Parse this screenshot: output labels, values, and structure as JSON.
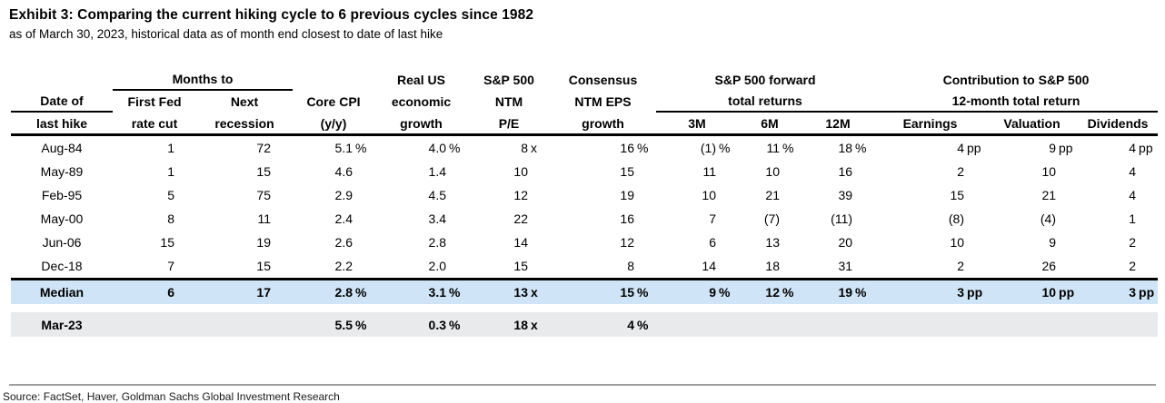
{
  "page": {
    "title": "Exhibit 3: Comparing the current hiking cycle to 6 previous cycles since 1982",
    "subtitle": "as of March 30, 2023, historical data as of month end closest to date of last hike",
    "source": "Source: FactSet, Haver, Goldman Sachs Global Investment Research"
  },
  "table": {
    "headers": {
      "date_col": {
        "line1": "Date of",
        "line2": "last hike"
      },
      "months_to_group": "Months to",
      "first_fed": {
        "line1": "First Fed",
        "line2": "rate cut"
      },
      "next_recession": {
        "line1": "Next",
        "line2": "recession"
      },
      "core_cpi": {
        "line1": "Core CPI",
        "line2": "(y/y)"
      },
      "real_growth": {
        "line1": "Real US",
        "line2": "economic",
        "line3": "growth"
      },
      "sp_ntm_pe": {
        "line1": "S&P 500",
        "line2": "NTM",
        "line3": "P/E"
      },
      "consensus_eps": {
        "line1": "Consensus",
        "line2": "NTM EPS",
        "line3": "growth"
      },
      "forward_returns_group": {
        "line1": "S&P 500 forward",
        "line2": "total returns"
      },
      "m3": "3M",
      "m6": "6M",
      "m12": "12M",
      "contribution_group": {
        "line1": "Contribution to S&P 500",
        "line2": "12-month total return"
      },
      "earnings": "Earnings",
      "valuation": "Valuation",
      "dividends": "Dividends"
    },
    "rows": [
      {
        "date": "Aug-84",
        "style": "normal",
        "cells": [
          [
            "1",
            ""
          ],
          [
            "72",
            ""
          ],
          [
            "5.1",
            "%"
          ],
          [
            "4.0",
            "%"
          ],
          [
            "8",
            "x"
          ],
          [
            "16",
            "%"
          ],
          [
            "(1)",
            "%"
          ],
          [
            "11",
            "%"
          ],
          [
            "18",
            "%"
          ],
          [
            "4",
            "pp"
          ],
          [
            "9",
            "pp"
          ],
          [
            "4",
            "pp"
          ]
        ]
      },
      {
        "date": "May-89",
        "style": "normal",
        "cells": [
          [
            "1",
            ""
          ],
          [
            "15",
            ""
          ],
          [
            "4.6",
            ""
          ],
          [
            "1.4",
            ""
          ],
          [
            "10",
            ""
          ],
          [
            "15",
            ""
          ],
          [
            "11",
            ""
          ],
          [
            "10",
            ""
          ],
          [
            "16",
            ""
          ],
          [
            "2",
            ""
          ],
          [
            "10",
            ""
          ],
          [
            "4",
            ""
          ]
        ]
      },
      {
        "date": "Feb-95",
        "style": "normal",
        "cells": [
          [
            "5",
            ""
          ],
          [
            "75",
            ""
          ],
          [
            "2.9",
            ""
          ],
          [
            "4.5",
            ""
          ],
          [
            "12",
            ""
          ],
          [
            "19",
            ""
          ],
          [
            "10",
            ""
          ],
          [
            "21",
            ""
          ],
          [
            "39",
            ""
          ],
          [
            "15",
            ""
          ],
          [
            "21",
            ""
          ],
          [
            "4",
            ""
          ]
        ]
      },
      {
        "date": "May-00",
        "style": "normal",
        "cells": [
          [
            "8",
            ""
          ],
          [
            "11",
            ""
          ],
          [
            "2.4",
            ""
          ],
          [
            "3.4",
            ""
          ],
          [
            "22",
            ""
          ],
          [
            "16",
            ""
          ],
          [
            "7",
            ""
          ],
          [
            "(7)",
            ""
          ],
          [
            "(11)",
            ""
          ],
          [
            "(8)",
            ""
          ],
          [
            "(4)",
            ""
          ],
          [
            "1",
            ""
          ]
        ]
      },
      {
        "date": "Jun-06",
        "style": "normal",
        "cells": [
          [
            "15",
            ""
          ],
          [
            "19",
            ""
          ],
          [
            "2.6",
            ""
          ],
          [
            "2.8",
            ""
          ],
          [
            "14",
            ""
          ],
          [
            "12",
            ""
          ],
          [
            "6",
            ""
          ],
          [
            "13",
            ""
          ],
          [
            "20",
            ""
          ],
          [
            "10",
            ""
          ],
          [
            "9",
            ""
          ],
          [
            "2",
            ""
          ]
        ]
      },
      {
        "date": "Dec-18",
        "style": "normal",
        "cells": [
          [
            "7",
            ""
          ],
          [
            "15",
            ""
          ],
          [
            "2.2",
            ""
          ],
          [
            "2.0",
            ""
          ],
          [
            "15",
            ""
          ],
          [
            "8",
            ""
          ],
          [
            "14",
            ""
          ],
          [
            "18",
            ""
          ],
          [
            "31",
            ""
          ],
          [
            "2",
            ""
          ],
          [
            "26",
            ""
          ],
          [
            "2",
            ""
          ]
        ]
      },
      {
        "date": "Median",
        "style": "median",
        "cells": [
          [
            "6",
            ""
          ],
          [
            "17",
            ""
          ],
          [
            "2.8",
            "%"
          ],
          [
            "3.1",
            "%"
          ],
          [
            "13",
            "x"
          ],
          [
            "15",
            "%"
          ],
          [
            "9",
            "%"
          ],
          [
            "12",
            "%"
          ],
          [
            "19",
            "%"
          ],
          [
            "3",
            "pp"
          ],
          [
            "10",
            "pp"
          ],
          [
            "3",
            "pp"
          ]
        ]
      },
      {
        "date": "Mar-23",
        "style": "current",
        "spacer_before": true,
        "cells": [
          [
            "",
            ""
          ],
          [
            "",
            ""
          ],
          [
            "5.5",
            "%"
          ],
          [
            "0.3",
            "%"
          ],
          [
            "18",
            "x"
          ],
          [
            "4",
            "%"
          ],
          [
            "",
            ""
          ],
          [
            "",
            ""
          ],
          [
            "",
            ""
          ],
          [
            "",
            ""
          ],
          [
            "",
            ""
          ],
          [
            "",
            ""
          ]
        ]
      }
    ],
    "highlight_colors": {
      "median_bg": "#cfe5f7",
      "current_bg": "#e8eaeb"
    }
  }
}
